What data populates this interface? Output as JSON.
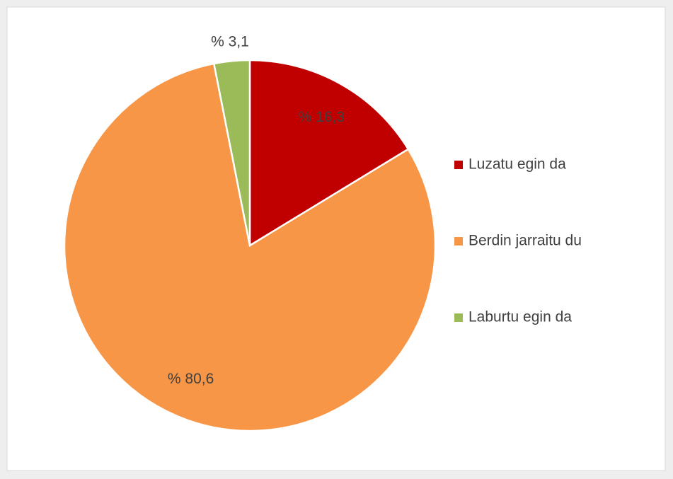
{
  "chart_data": {
    "type": "pie",
    "categories": [
      "Luzatu egin da",
      "Berdin jarraitu du",
      "Laburtu egin da"
    ],
    "values": [
      16.3,
      80.6,
      3.1
    ],
    "value_labels": [
      "% 16,3",
      "% 80,6",
      "% 3,1"
    ],
    "colors": [
      "#c00000",
      "#f79646",
      "#9bbb59"
    ],
    "legend": "right"
  }
}
